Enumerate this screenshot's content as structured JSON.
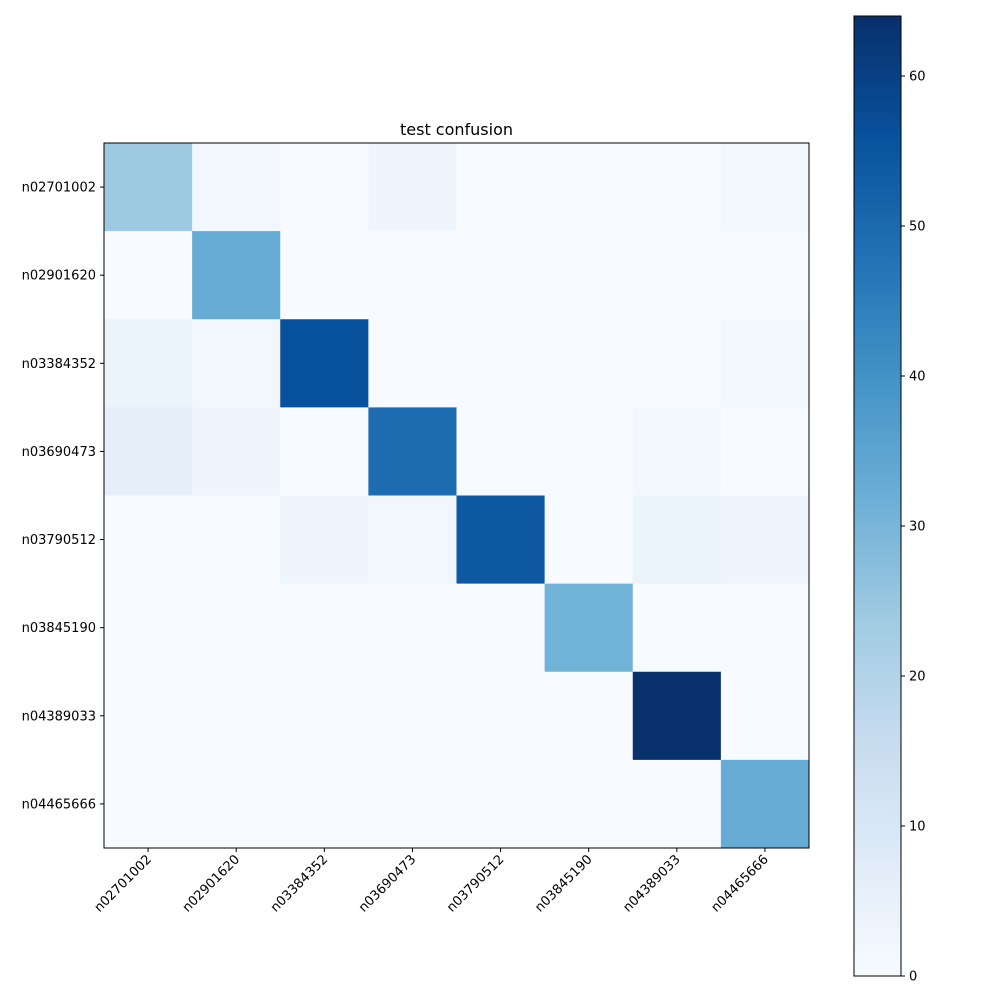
{
  "chart_data": {
    "type": "heatmap",
    "title": "test confusion",
    "xlabel": "",
    "ylabel": "",
    "colormap": "Blues",
    "vmin": 0,
    "vmax": 64,
    "row_labels": [
      "n02701002",
      "n02901620",
      "n03384352",
      "n03690473",
      "n03790512",
      "n03845190",
      "n04389033",
      "n04465666"
    ],
    "col_labels": [
      "n02701002",
      "n02901620",
      "n03384352",
      "n03690473",
      "n03790512",
      "n03845190",
      "n04389033",
      "n04465666"
    ],
    "values": [
      [
        24,
        2,
        0,
        3,
        0,
        0,
        0,
        2
      ],
      [
        0,
        33,
        0,
        0,
        0,
        0,
        0,
        0
      ],
      [
        4,
        2,
        56,
        0,
        0,
        0,
        0,
        2
      ],
      [
        6,
        3,
        0,
        49,
        0,
        0,
        2,
        0
      ],
      [
        0,
        0,
        3,
        2,
        54,
        0,
        4,
        3
      ],
      [
        0,
        0,
        0,
        0,
        0,
        31,
        0,
        0
      ],
      [
        0,
        0,
        0,
        0,
        0,
        0,
        64,
        0
      ],
      [
        0,
        0,
        0,
        0,
        0,
        0,
        0,
        33
      ]
    ],
    "colorbar_ticks": [
      0,
      10,
      20,
      30,
      40,
      50,
      60
    ],
    "colors": {
      "low": "#f7fbff",
      "high": "#08306b"
    }
  }
}
